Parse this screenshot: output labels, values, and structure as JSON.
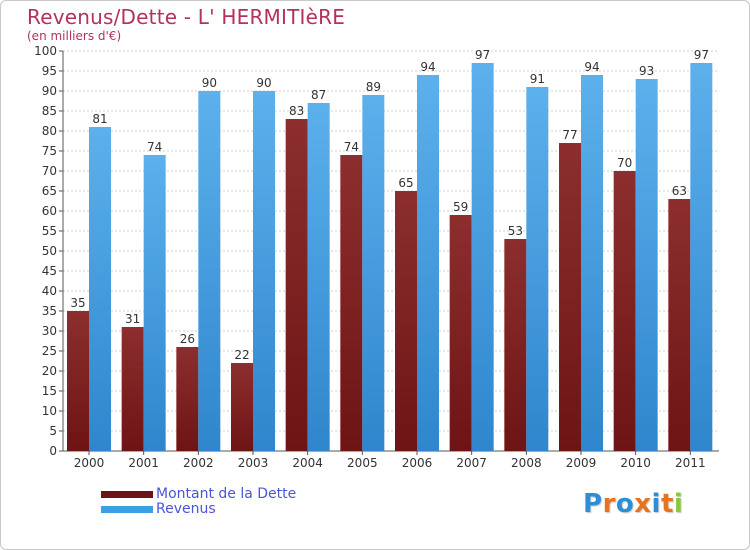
{
  "colors": {
    "debt": "#6e1414",
    "revenue": "#3ea0e4",
    "title": "#b4325a",
    "legend_text": "#4a55d8",
    "grid": "#d2d2d2"
  },
  "logo": {
    "letters": [
      "P",
      "r",
      "o",
      "x",
      "i",
      "t",
      "i"
    ],
    "colors": [
      "#2a8fd8",
      "#e8731e",
      "#2a8fd8",
      "#e8731e",
      "#2a8fd8",
      "#e8731e",
      "#8cc83c"
    ]
  },
  "chart_data": {
    "type": "bar",
    "title": "Revenus/Dette - L' HERMITIèRE",
    "subtitle": "(en milliers d'€)",
    "xlabel": "",
    "ylabel": "",
    "ylim": [
      0,
      100
    ],
    "ytick_step": 5,
    "grid": true,
    "legend_position": "bottom-left",
    "categories": [
      "2000",
      "2001",
      "2002",
      "2003",
      "2004",
      "2005",
      "2006",
      "2007",
      "2008",
      "2009",
      "2010",
      "2011"
    ],
    "series": [
      {
        "name": "Montant de la Dette",
        "values": [
          35,
          31,
          26,
          22,
          83,
          74,
          65,
          59,
          53,
          77,
          70,
          63
        ]
      },
      {
        "name": "Revenus",
        "values": [
          81,
          74,
          90,
          90,
          87,
          89,
          94,
          97,
          91,
          94,
          93,
          97
        ]
      }
    ]
  }
}
